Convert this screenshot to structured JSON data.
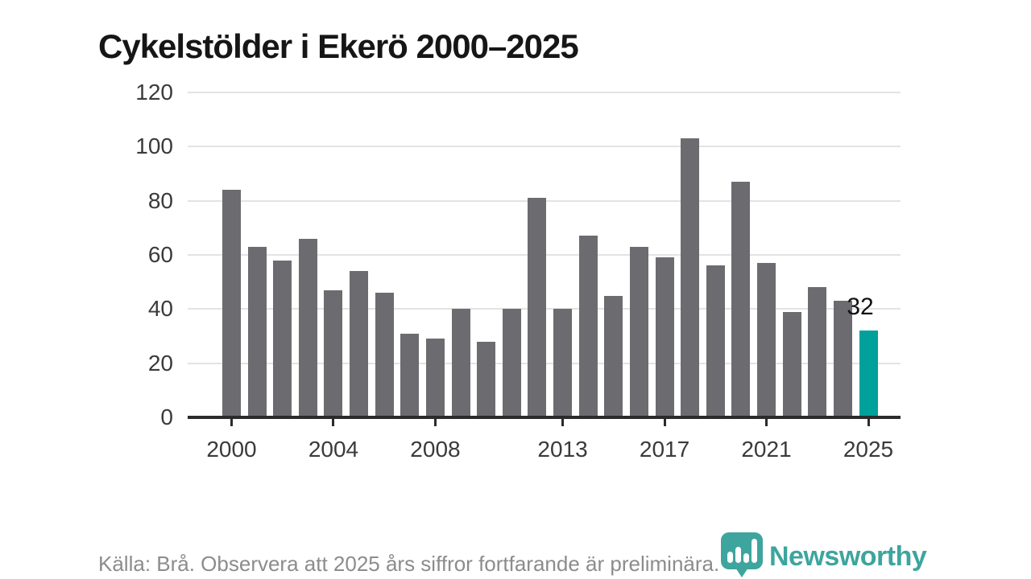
{
  "title": "Cykelstölder i Ekerö 2000–2025",
  "footer": {
    "source_note": "Källa: Brå. Observera att 2025 års siffror fortfarande är preliminära."
  },
  "branding": {
    "logo_text": "Newsworthy",
    "logo_color": "#2f9f97",
    "logo_icon": "bar-chart-map-pin-icon"
  },
  "chart_data": {
    "type": "bar",
    "title": "Cykelstölder i Ekerö 2000–2025",
    "x": [
      2000,
      2001,
      2002,
      2003,
      2004,
      2005,
      2006,
      2007,
      2008,
      2009,
      2010,
      2011,
      2012,
      2013,
      2014,
      2015,
      2016,
      2017,
      2018,
      2019,
      2020,
      2021,
      2022,
      2023,
      2024,
      2025
    ],
    "values": [
      84,
      63,
      58,
      66,
      47,
      54,
      46,
      31,
      29,
      40,
      28,
      40,
      81,
      40,
      67,
      45,
      63,
      59,
      103,
      56,
      87,
      57,
      39,
      48,
      43,
      32
    ],
    "xlabel": "",
    "ylabel": "",
    "ylim": [
      0,
      120
    ],
    "yticks": [
      0,
      20,
      40,
      60,
      80,
      100,
      120
    ],
    "xticks": [
      2000,
      2004,
      2008,
      2013,
      2017,
      2021,
      2025
    ],
    "grid": true,
    "legend": false,
    "bar_color": "#6c6c70",
    "highlight_index": 25,
    "highlight_color": "#00a19a",
    "highlight_label": "32"
  }
}
